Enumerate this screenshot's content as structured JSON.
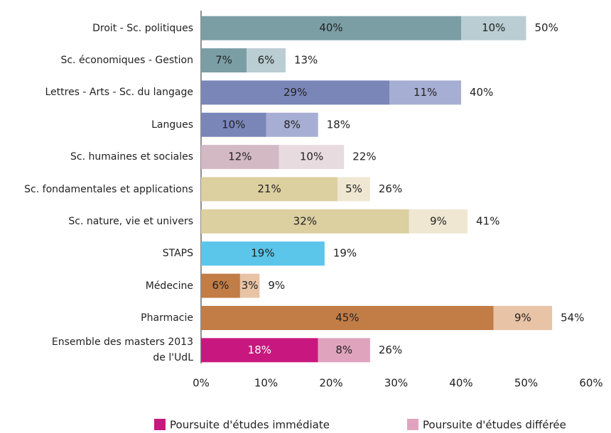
{
  "chart_data": {
    "type": "stacked-barh",
    "categories": [
      "Droit - Sc. politiques",
      "Sc. économiques - Gestion",
      "Lettres - Arts - Sc. du langage",
      "Langues",
      "Sc. humaines et sociales",
      "Sc. fondamentales et applications",
      "Sc. nature, vie et univers",
      "STAPS",
      "Médecine",
      "Pharmacie",
      "Ensemble des masters 2013\nde l'UdL"
    ],
    "series": [
      {
        "name": "Poursuite d'études immédiate",
        "color": "#c8187f",
        "colors": [
          "#7b9ea5",
          "#7b9ea5",
          "#7a86b8",
          "#7a86b8",
          "#d3b9c3",
          "#dccfa0",
          "#dccfa0",
          "#5bc5ea",
          "#c27c45",
          "#c27c45",
          "#c8187f"
        ],
        "label_colors": [
          "#222",
          "#222",
          "#222",
          "#222",
          "#222",
          "#222",
          "#222",
          "#222",
          "#222",
          "#222",
          "#ffffff"
        ],
        "values": [
          40,
          7,
          29,
          10,
          12,
          21,
          32,
          19,
          6,
          45,
          18
        ],
        "value_labels": [
          "40%",
          "7%",
          "29%",
          "10%",
          "12%",
          "21%",
          "32%",
          "19%",
          "6%",
          "45%",
          "18%"
        ]
      },
      {
        "name": "Poursuite d'études différée",
        "color": "#e0a3bd",
        "colors": [
          "#b9cdd2",
          "#b9cdd2",
          "#a7aed3",
          "#a7aed3",
          "#e8dbe0",
          "#efe7d2",
          "#efe7d2",
          "#5bc5ea",
          "#e8c3a5",
          "#e8c3a5",
          "#e0a3bd"
        ],
        "label_colors": [
          "#222",
          "#222",
          "#222",
          "#222",
          "#222",
          "#222",
          "#222",
          "#222",
          "#222",
          "#222",
          "#222"
        ],
        "values": [
          10,
          6,
          11,
          8,
          10,
          5,
          9,
          null,
          3,
          9,
          8
        ],
        "value_labels": [
          "10%",
          "6%",
          "11%",
          "8%",
          "10%",
          "5%",
          "9%",
          null,
          "3%",
          "9%",
          "8%"
        ]
      }
    ],
    "totals": [
      50,
      13,
      40,
      18,
      22,
      26,
      41,
      19,
      9,
      54,
      26
    ],
    "total_labels": [
      "50%",
      "13%",
      "40%",
      "18%",
      "22%",
      "26%",
      "41%",
      "19%",
      "9%",
      "54%",
      "26%"
    ],
    "xlim": [
      0,
      60
    ],
    "xticks": [
      {
        "value": 0,
        "label": "0%"
      },
      {
        "value": 10,
        "label": "10%"
      },
      {
        "value": 20,
        "label": "20%"
      },
      {
        "value": 30,
        "label": "30%"
      },
      {
        "value": 40,
        "label": "40%"
      },
      {
        "value": 50,
        "label": "50%"
      },
      {
        "value": 60,
        "label": "60%"
      }
    ],
    "legend": "bottom"
  }
}
